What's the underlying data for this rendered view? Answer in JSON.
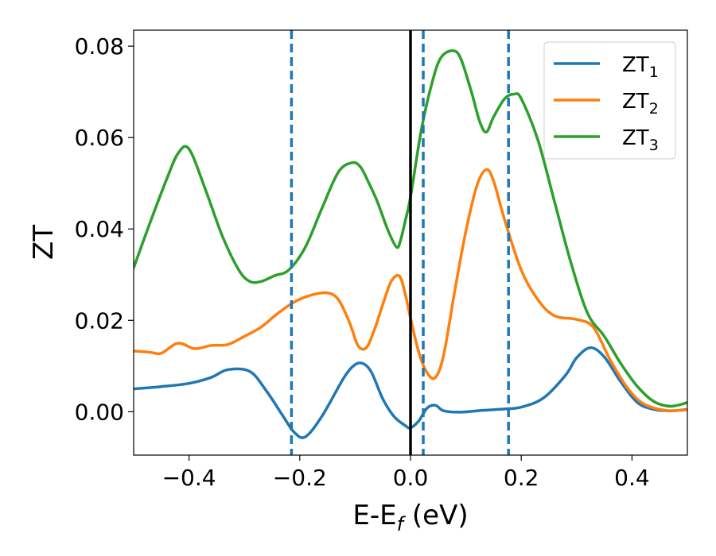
{
  "chart_data": {
    "type": "line",
    "title": "",
    "xlabel": "E-E",
    "xlabel_sub": "f",
    "xlabel_unit": " (eV)",
    "ylabel": "ZT",
    "xlim": [
      -0.5,
      0.5
    ],
    "ylim": [
      -0.0095,
      0.0835
    ],
    "xticks": [
      -0.4,
      -0.2,
      0.0,
      0.2,
      0.4
    ],
    "xtick_labels": [
      "−0.4",
      "−0.2",
      "0.0",
      "0.2",
      "0.4"
    ],
    "yticks": [
      0.0,
      0.02,
      0.04,
      0.06,
      0.08
    ],
    "ytick_labels": [
      "0.00",
      "0.02",
      "0.04",
      "0.06",
      "0.08"
    ],
    "grid": false,
    "legend_position": "top-right",
    "fermi_line": {
      "x": 0.0,
      "color": "#000000"
    },
    "dashed_vlines": {
      "x": [
        -0.215,
        0.023,
        0.177
      ],
      "color": "#1f77b4"
    },
    "series": [
      {
        "name": "ZT",
        "sub": "1",
        "color": "#1f77b4",
        "x": [
          -0.5,
          -0.45,
          -0.4,
          -0.36,
          -0.33,
          -0.29,
          -0.26,
          -0.23,
          -0.21,
          -0.19,
          -0.16,
          -0.12,
          -0.1,
          -0.085,
          -0.07,
          -0.05,
          -0.03,
          -0.01,
          0.0,
          0.015,
          0.03,
          0.045,
          0.06,
          0.09,
          0.13,
          0.17,
          0.2,
          0.24,
          0.28,
          0.3,
          0.325,
          0.35,
          0.38,
          0.41,
          0.44,
          0.47,
          0.5
        ],
        "y": [
          0.005,
          0.0055,
          0.0062,
          0.0075,
          0.0092,
          0.0088,
          0.0045,
          -0.001,
          -0.0045,
          -0.0055,
          -0.001,
          0.0075,
          0.0103,
          0.0105,
          0.0085,
          0.0028,
          -0.001,
          -0.003,
          -0.0035,
          -0.002,
          0.0008,
          0.0014,
          0.0002,
          -0.0001,
          0.0003,
          0.0006,
          0.001,
          0.003,
          0.008,
          0.0118,
          0.014,
          0.012,
          0.0065,
          0.002,
          0.0005,
          0.0002,
          0.0005
        ]
      },
      {
        "name": "ZT",
        "sub": "2",
        "color": "#ff7f0e",
        "x": [
          -0.5,
          -0.47,
          -0.45,
          -0.42,
          -0.39,
          -0.36,
          -0.33,
          -0.3,
          -0.27,
          -0.24,
          -0.21,
          -0.18,
          -0.15,
          -0.13,
          -0.11,
          -0.095,
          -0.08,
          -0.065,
          -0.05,
          -0.035,
          -0.02,
          -0.01,
          0.0,
          0.015,
          0.03,
          0.045,
          0.06,
          0.08,
          0.1,
          0.12,
          0.137,
          0.15,
          0.17,
          0.2,
          0.23,
          0.26,
          0.3,
          0.33,
          0.36,
          0.39,
          0.42,
          0.46,
          0.5
        ],
        "y": [
          0.0133,
          0.013,
          0.0128,
          0.015,
          0.0138,
          0.0145,
          0.0147,
          0.0165,
          0.0185,
          0.0215,
          0.024,
          0.0255,
          0.026,
          0.0245,
          0.0195,
          0.0145,
          0.014,
          0.018,
          0.0235,
          0.0285,
          0.0297,
          0.026,
          0.0205,
          0.013,
          0.0085,
          0.0075,
          0.0125,
          0.0265,
          0.0395,
          0.0495,
          0.053,
          0.0505,
          0.042,
          0.031,
          0.0245,
          0.021,
          0.0202,
          0.0185,
          0.0115,
          0.0055,
          0.0018,
          0.0003,
          0.0004
        ]
      },
      {
        "name": "ZT",
        "sub": "3",
        "color": "#2ca02c",
        "x": [
          -0.5,
          -0.47,
          -0.44,
          -0.42,
          -0.4,
          -0.37,
          -0.34,
          -0.31,
          -0.29,
          -0.27,
          -0.245,
          -0.22,
          -0.19,
          -0.16,
          -0.13,
          -0.105,
          -0.09,
          -0.075,
          -0.06,
          -0.04,
          -0.025,
          -0.018,
          -0.01,
          0.0,
          0.02,
          0.04,
          0.055,
          0.075,
          0.09,
          0.11,
          0.125,
          0.137,
          0.15,
          0.17,
          0.187,
          0.2,
          0.23,
          0.26,
          0.29,
          0.32,
          0.35,
          0.38,
          0.41,
          0.44,
          0.47,
          0.5
        ],
        "y": [
          0.0315,
          0.0415,
          0.051,
          0.0565,
          0.0575,
          0.0485,
          0.0385,
          0.031,
          0.0285,
          0.0285,
          0.0298,
          0.031,
          0.036,
          0.0445,
          0.0525,
          0.0545,
          0.0535,
          0.05,
          0.046,
          0.0395,
          0.036,
          0.0375,
          0.0415,
          0.047,
          0.062,
          0.0725,
          0.0775,
          0.079,
          0.0775,
          0.07,
          0.0635,
          0.0612,
          0.0645,
          0.0685,
          0.0695,
          0.0685,
          0.0595,
          0.046,
          0.0325,
          0.0215,
          0.0165,
          0.0105,
          0.0055,
          0.0022,
          0.0012,
          0.002
        ]
      }
    ]
  }
}
